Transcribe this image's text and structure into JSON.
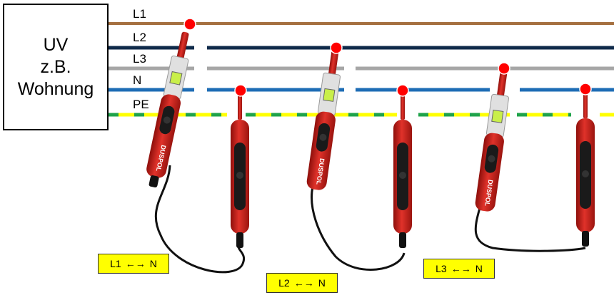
{
  "distribution_box": {
    "lines": [
      "UV",
      "z.B.",
      "Wohnung"
    ]
  },
  "conductors": [
    {
      "label": "L1",
      "color": "#a57040"
    },
    {
      "label": "L2",
      "color": "#0f2a4a"
    },
    {
      "label": "L3",
      "color": "#a6a6a6"
    },
    {
      "label": "N",
      "color": "#1e6db5"
    },
    {
      "label": "PE",
      "color": "#ffff00",
      "stripe_color": "#1fa34a"
    }
  ],
  "tester": {
    "brand": "DUSPOL",
    "body_color": "#d7261e",
    "probe_tip_color": "#ff0000"
  },
  "measurements": [
    {
      "from": "L1",
      "arrow": "←→",
      "to": "N"
    },
    {
      "from": "L2",
      "arrow": "←→",
      "to": "N"
    },
    {
      "from": "L3",
      "arrow": "←→",
      "to": "N"
    }
  ]
}
